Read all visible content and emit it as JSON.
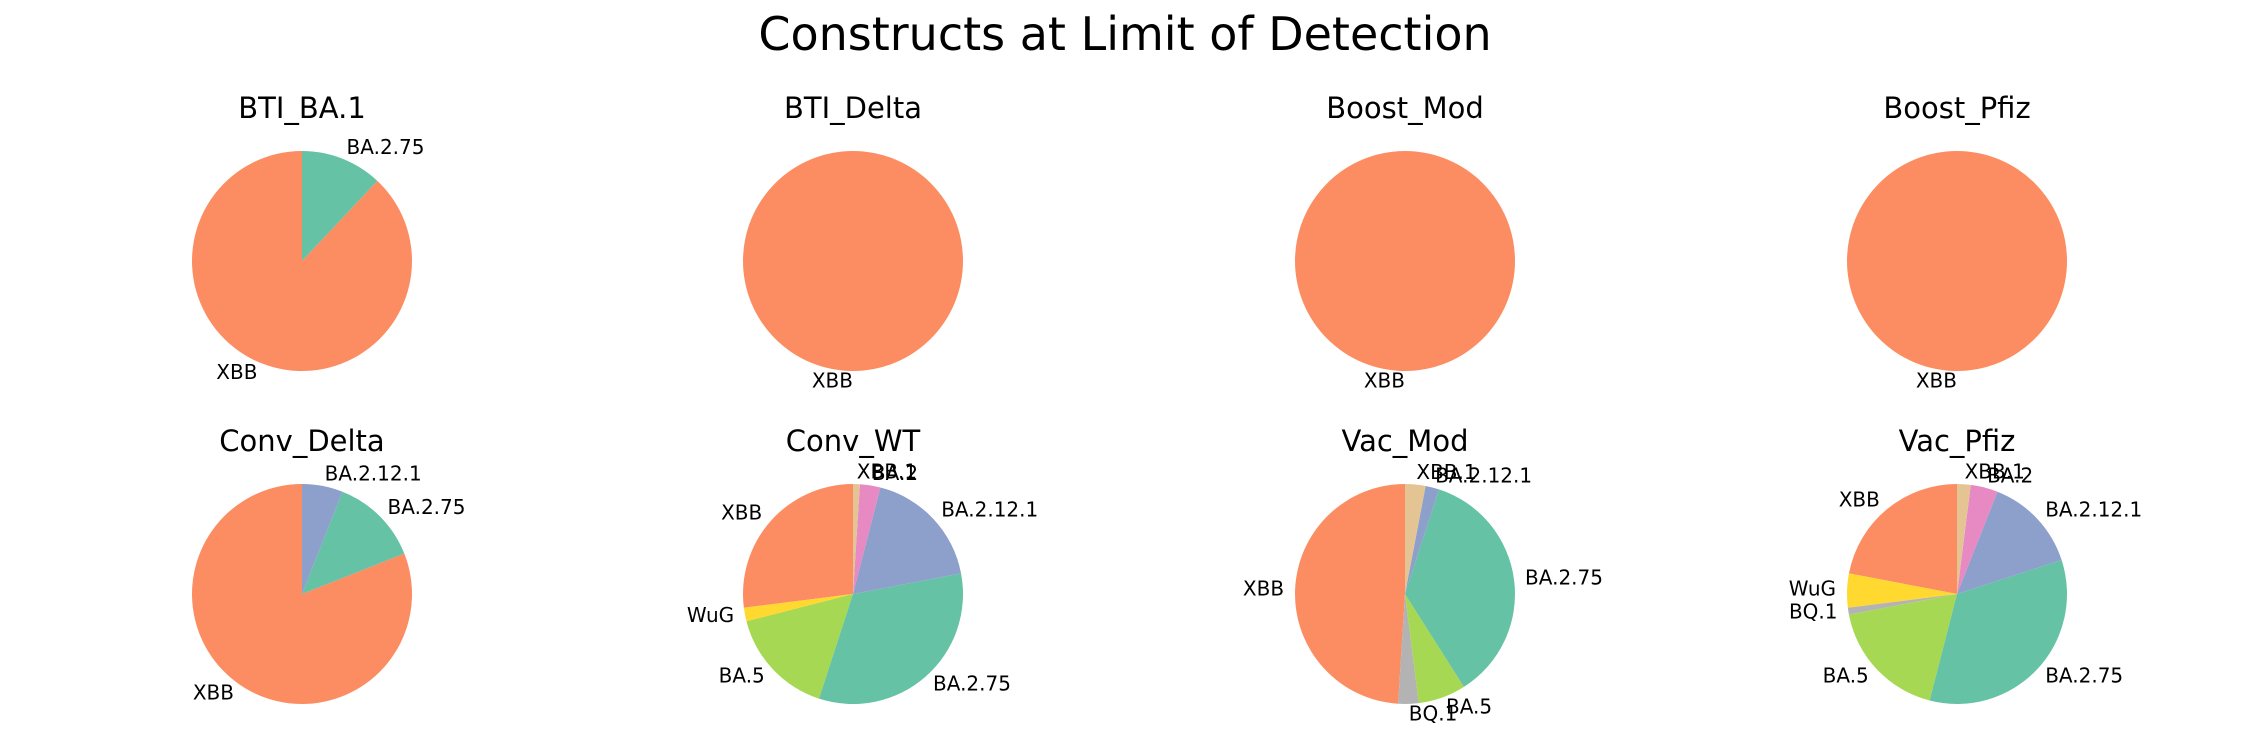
{
  "chart_data": {
    "type": "pie",
    "title": "Constructs at Limit of Detection",
    "colors": {
      "XBB": "#fc8d62",
      "BA.2.75": "#66c2a5",
      "BA.2.12.1": "#8da0cb",
      "BA.2": "#e78ac3",
      "BA.5": "#a6d854",
      "WuG": "#ffd92f",
      "XBB.1": "#e5c494",
      "BQ.1": "#b3b3b3"
    },
    "charts": [
      {
        "title": "BTI_BA.1",
        "slices": [
          {
            "label": "XBB",
            "value": 88
          },
          {
            "label": "BA.2.75",
            "value": 12
          }
        ]
      },
      {
        "title": "BTI_Delta",
        "slices": [
          {
            "label": "XBB",
            "value": 100
          }
        ]
      },
      {
        "title": "Boost_Mod",
        "slices": [
          {
            "label": "XBB",
            "value": 100
          }
        ]
      },
      {
        "title": "Boost_Pfiz",
        "slices": [
          {
            "label": "XBB",
            "value": 100
          }
        ]
      },
      {
        "title": "Conv_Delta",
        "slices": [
          {
            "label": "XBB",
            "value": 81
          },
          {
            "label": "BA.2.75",
            "value": 13
          },
          {
            "label": "BA.2.12.1",
            "value": 6
          }
        ]
      },
      {
        "title": "Conv_WT",
        "slices": [
          {
            "label": "XBB",
            "value": 27
          },
          {
            "label": "WuG",
            "value": 2
          },
          {
            "label": "BA.5",
            "value": 16
          },
          {
            "label": "BA.2.75",
            "value": 33
          },
          {
            "label": "BA.2.12.1",
            "value": 18
          },
          {
            "label": "BA.2",
            "value": 3
          },
          {
            "label": "XBB.1",
            "value": 1
          }
        ]
      },
      {
        "title": "Vac_Mod",
        "slices": [
          {
            "label": "XBB",
            "value": 49
          },
          {
            "label": "BQ.1",
            "value": 3
          },
          {
            "label": "BA.5",
            "value": 7
          },
          {
            "label": "BA.2.75",
            "value": 36
          },
          {
            "label": "BA.2.12.1",
            "value": 2
          },
          {
            "label": "XBB.1",
            "value": 3
          }
        ]
      },
      {
        "title": "Vac_Pfiz",
        "slices": [
          {
            "label": "XBB",
            "value": 22
          },
          {
            "label": "WuG",
            "value": 5
          },
          {
            "label": "BQ.1",
            "value": 1
          },
          {
            "label": "BA.5",
            "value": 18
          },
          {
            "label": "BA.2.75",
            "value": 34
          },
          {
            "label": "BA.2.12.1",
            "value": 14
          },
          {
            "label": "BA.2",
            "value": 4
          },
          {
            "label": "XBB.1",
            "value": 2
          }
        ]
      }
    ]
  }
}
